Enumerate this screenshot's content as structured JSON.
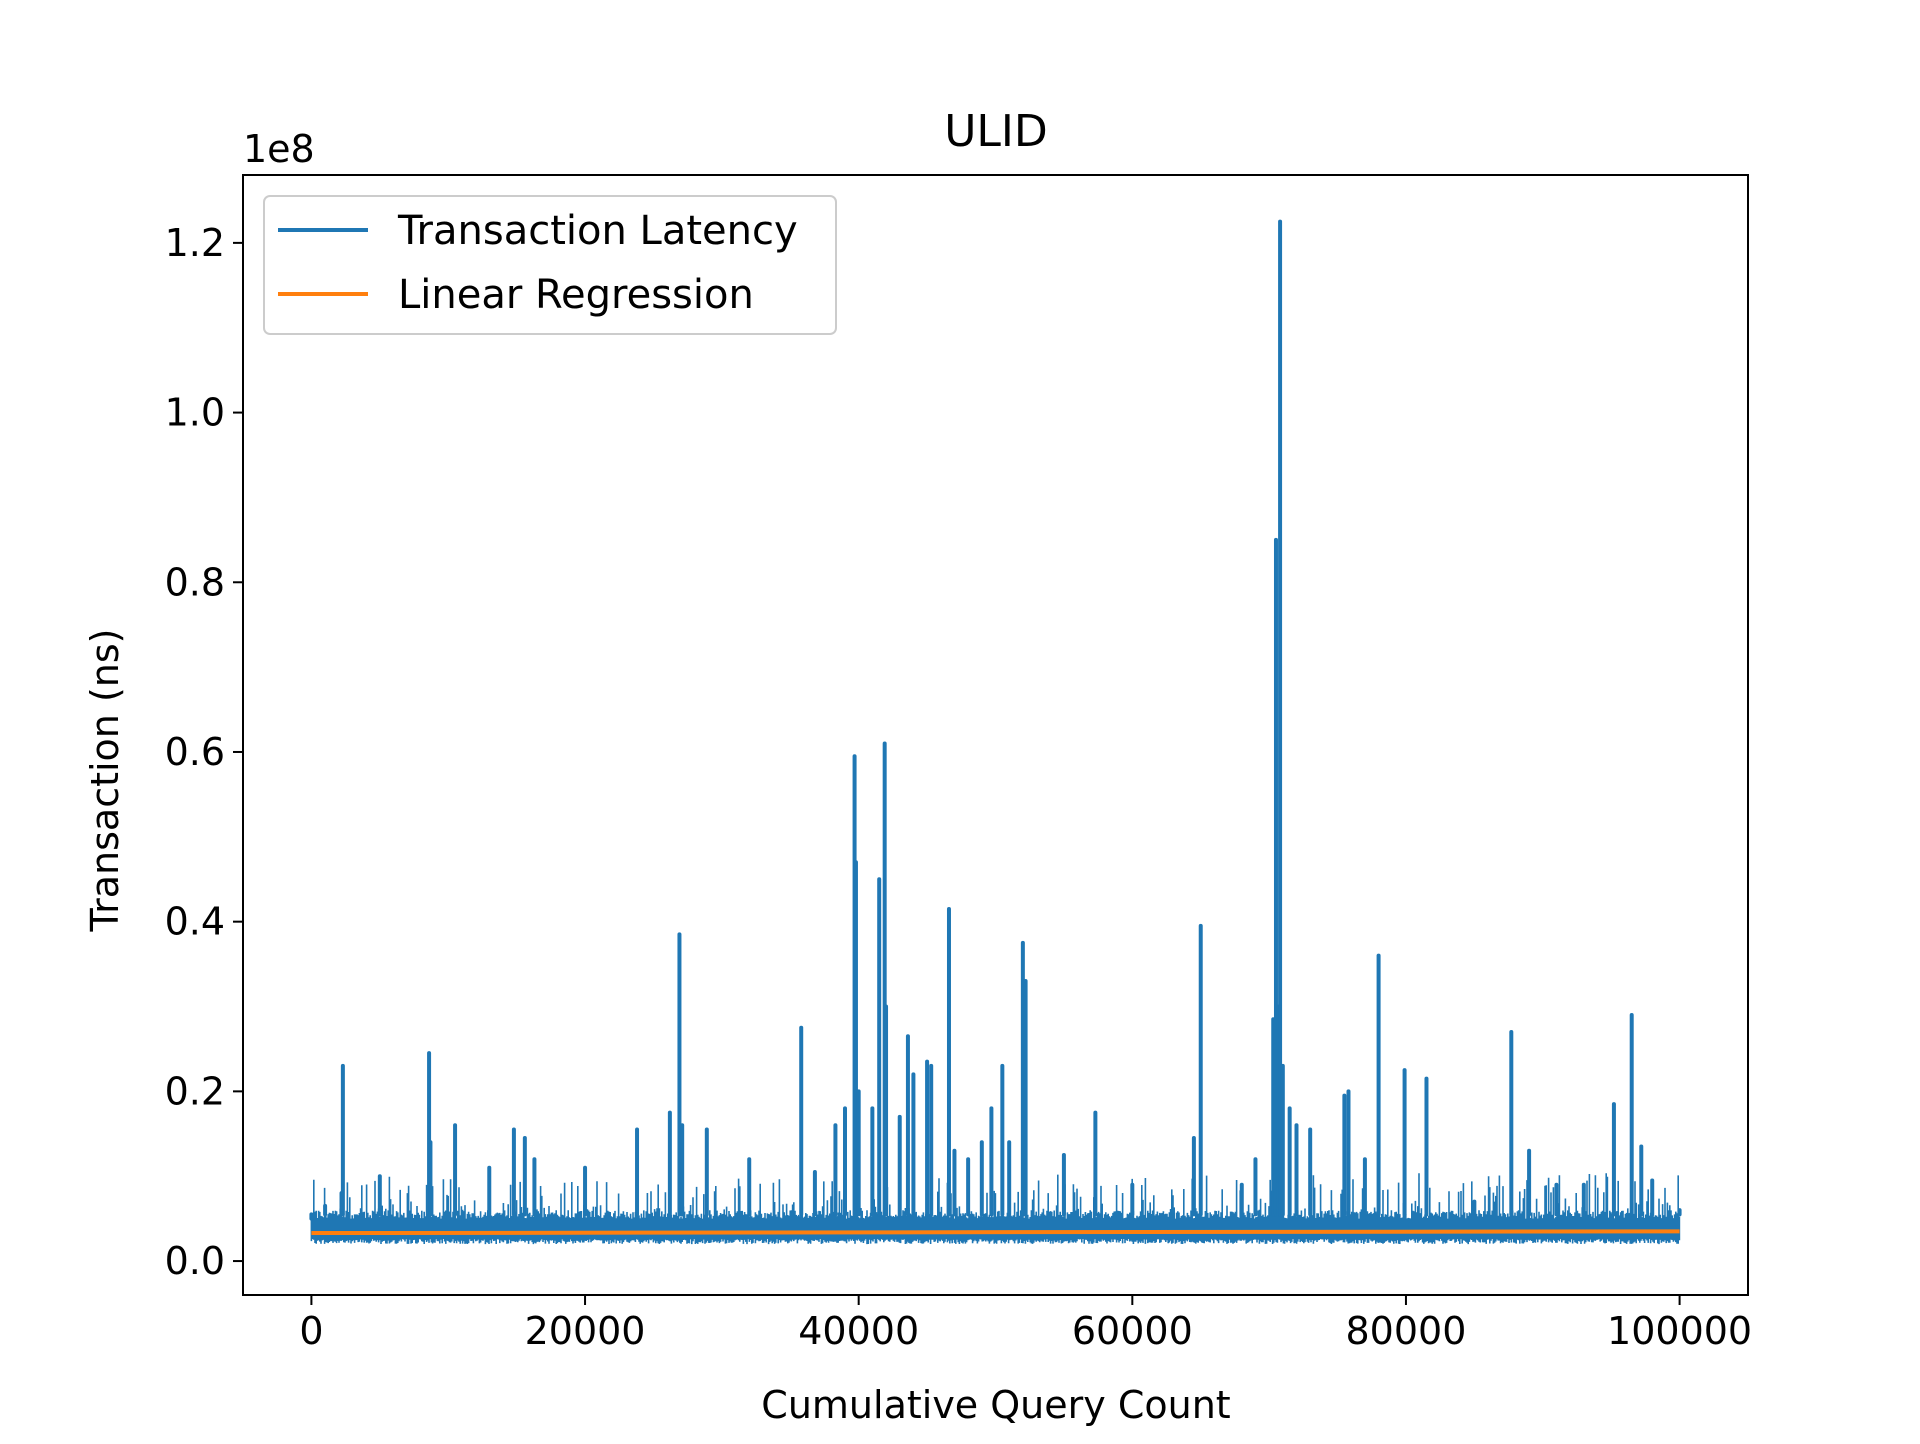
{
  "chart_data": {
    "type": "line",
    "title": "ULID",
    "xlabel": "Cumulative Query Count",
    "ylabel": "Transaction (ns)",
    "y_offset_label": "1e8",
    "y_scale_factor": 100000000,
    "xlim": [
      -5000,
      105000
    ],
    "ylim": [
      -4000000,
      128000000
    ],
    "x_ticks": [
      0,
      20000,
      40000,
      60000,
      80000,
      100000
    ],
    "x_tick_labels": [
      "0",
      "20000",
      "40000",
      "60000",
      "80000",
      "100000"
    ],
    "y_ticks": [
      0,
      20000000,
      40000000,
      60000000,
      80000000,
      100000000,
      120000000
    ],
    "y_tick_labels": [
      "0.0",
      "0.2",
      "0.4",
      "0.6",
      "0.8",
      "1.0",
      "1.2"
    ],
    "grid": false,
    "legend": {
      "placement": "top-left",
      "entries": [
        "Transaction Latency",
        "Linear Regression"
      ]
    },
    "series": [
      {
        "name": "Transaction Latency",
        "color": "#1f77b4",
        "baseline_range": [
          2000000,
          6000000
        ],
        "x": [
          0,
          1000,
          2200,
          2300,
          5000,
          8600,
          8700,
          10500,
          13000,
          14800,
          15600,
          16300,
          20000,
          23800,
          26200,
          26900,
          27100,
          28900,
          32000,
          35800,
          36800,
          38300,
          39000,
          39700,
          39800,
          40000,
          41000,
          41500,
          41900,
          42000,
          43000,
          43600,
          44000,
          45000,
          45300,
          46600,
          47000,
          48000,
          49000,
          49700,
          50500,
          51000,
          52000,
          52200,
          55000,
          57300,
          60000,
          64500,
          65000,
          68000,
          69000,
          70300,
          70500,
          70700,
          70800,
          71000,
          71500,
          72000,
          73000,
          75500,
          75800,
          77000,
          78000,
          79900,
          81500,
          85000,
          87700,
          89000,
          91000,
          93000,
          95200,
          96500,
          97200,
          98000,
          100000
        ],
        "y": [
          5000000,
          6500000,
          8000000,
          23000000,
          10000000,
          24500000,
          14000000,
          16000000,
          11000000,
          15500000,
          14500000,
          12000000,
          11000000,
          15500000,
          17500000,
          38500000,
          16000000,
          15500000,
          12000000,
          27500000,
          10500000,
          16000000,
          18000000,
          59500000,
          47000000,
          20000000,
          18000000,
          45000000,
          61000000,
          30000000,
          17000000,
          26500000,
          22000000,
          23500000,
          23000000,
          41500000,
          13000000,
          12000000,
          14000000,
          18000000,
          23000000,
          14000000,
          37500000,
          33000000,
          12500000,
          17500000,
          9000000,
          14500000,
          39500000,
          9000000,
          12000000,
          28500000,
          85000000,
          30000000,
          122500000,
          23000000,
          18000000,
          16000000,
          15500000,
          19500000,
          20000000,
          12000000,
          36000000,
          22500000,
          21500000,
          7000000,
          27000000,
          13000000,
          9000000,
          9000000,
          18500000,
          29000000,
          13500000,
          9500000,
          6000000
        ]
      },
      {
        "name": "Linear Regression",
        "color": "#ff7f0e",
        "x": [
          0,
          100000
        ],
        "y": [
          3300000,
          3500000
        ]
      }
    ]
  }
}
